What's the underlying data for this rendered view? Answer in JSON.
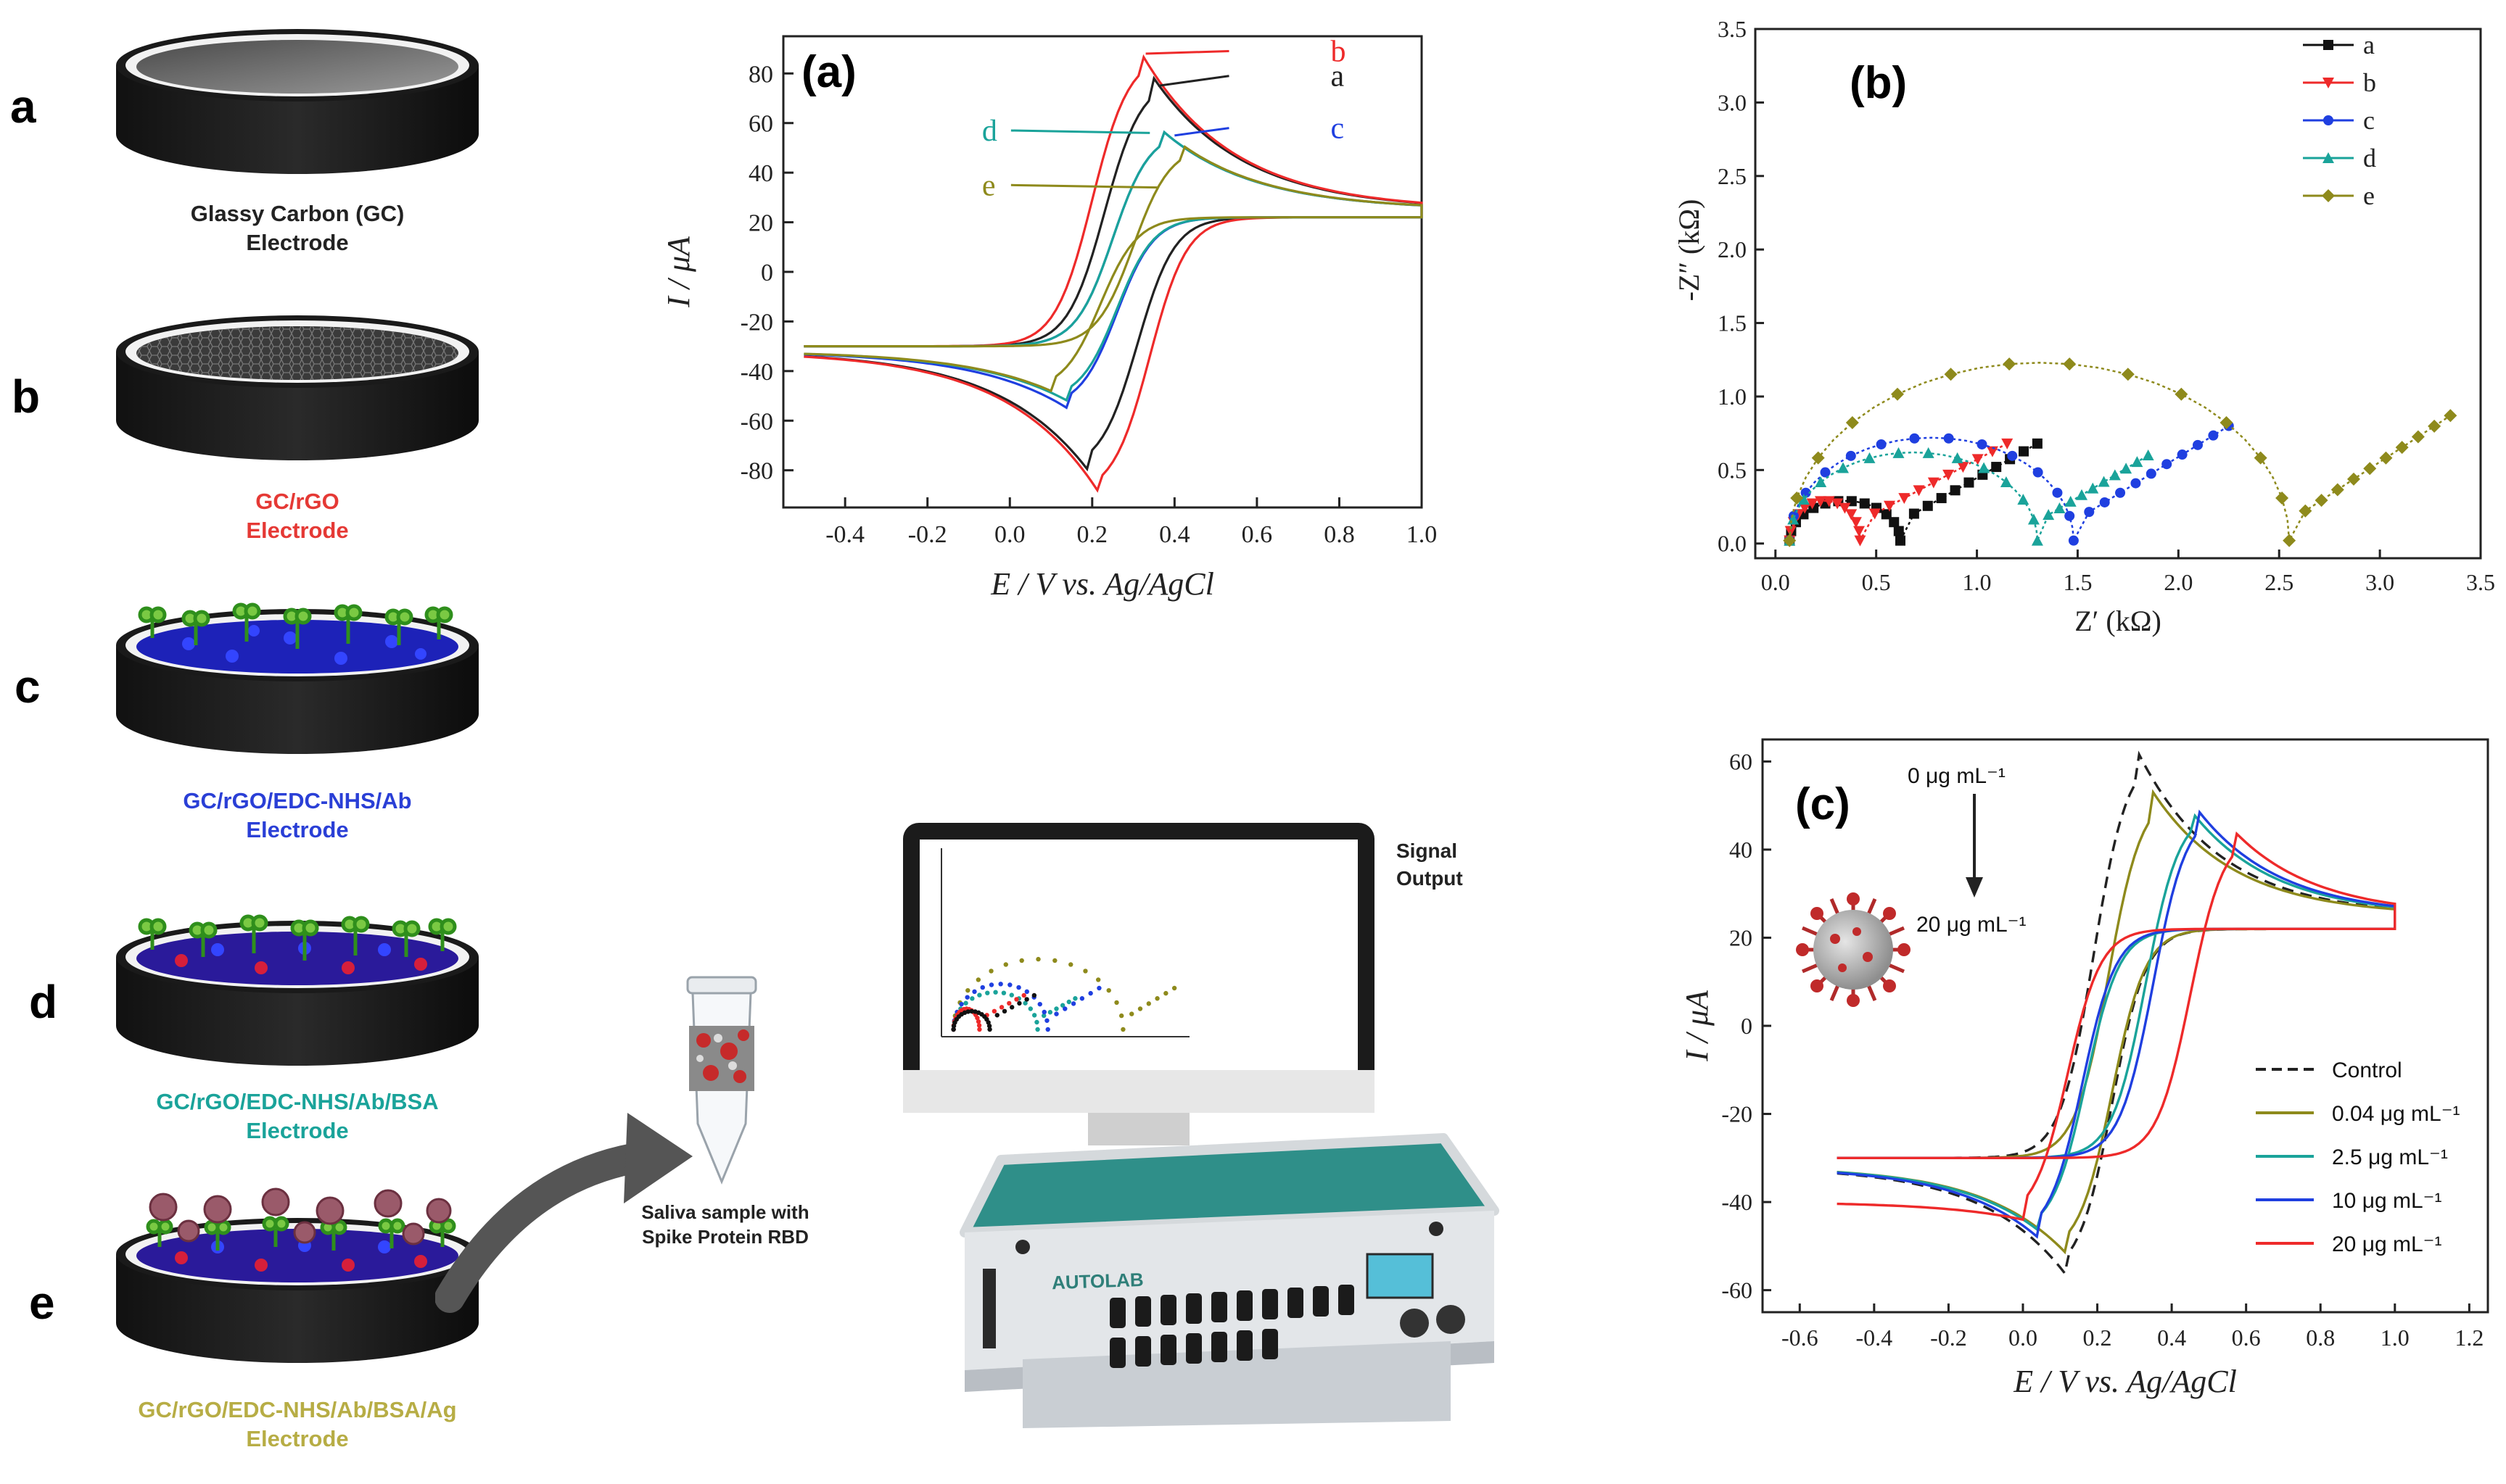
{
  "steps": [
    {
      "letter": "a",
      "line1": "Glassy Carbon (GC)",
      "line2": "Electrode",
      "color": "#222222"
    },
    {
      "letter": "b",
      "line1": "GC/rGO",
      "line2": "Electrode",
      "color": "#e53935"
    },
    {
      "letter": "c",
      "line1": "GC/rGO/EDC-NHS/Ab",
      "line2": "Electrode",
      "color": "#2a3fd6"
    },
    {
      "letter": "d",
      "line1": "GC/rGO/EDC-NHS/Ab/BSA",
      "line2": "Electrode",
      "color": "#1aa39a"
    },
    {
      "letter": "e",
      "line1": "GC/rGO/EDC-NHS/Ab/BSA/Ag",
      "line2": "Electrode",
      "color": "#b7ad45"
    }
  ],
  "sample": {
    "line1": "Saliva sample  with",
    "line2": "Spike Protein RBD"
  },
  "monitor": {
    "signal_line1": "Signal",
    "signal_line2": "Output"
  },
  "device": {
    "brand": "AUTOLAB"
  },
  "colors": {
    "a": "#222222",
    "b": "#ee2a2a",
    "c": "#1f3fe0",
    "d": "#1aa39a",
    "e": "#8e8a1c"
  },
  "chart_data": [
    {
      "id": "a",
      "type": "line",
      "panel_label": "(a)",
      "title": "",
      "xlabel": "E / V vs. Ag/AgCl",
      "ylabel": "I / μA",
      "xlim": [
        -0.55,
        1.0
      ],
      "ylim": [
        -95,
        95
      ],
      "xticks": [
        -0.4,
        -0.2,
        0.0,
        0.2,
        0.4,
        0.6,
        0.8,
        1.0
      ],
      "yticks": [
        -80,
        -60,
        -40,
        -20,
        0,
        20,
        40,
        60,
        80
      ],
      "series": [
        {
          "name": "a",
          "peak_anodic": [
            0.35,
            78
          ],
          "peak_cathodic": [
            0.19,
            -80
          ]
        },
        {
          "name": "b",
          "peak_anodic": [
            0.32,
            88
          ],
          "peak_cathodic": [
            0.22,
            -90
          ]
        },
        {
          "name": "c",
          "peak_anodic": [
            0.37,
            57
          ],
          "peak_cathodic": [
            0.14,
            -55
          ]
        },
        {
          "name": "d",
          "peak_anodic": [
            0.37,
            57
          ],
          "peak_cathodic": [
            0.14,
            -52
          ]
        },
        {
          "name": "e",
          "peak_anodic": [
            0.42,
            51
          ],
          "peak_cathodic": [
            0.1,
            -48
          ]
        }
      ],
      "annotations": [
        "b",
        "a",
        "d",
        "c",
        "e"
      ]
    },
    {
      "id": "b",
      "type": "scatter",
      "panel_label": "(b)",
      "xlabel": "Z′ (kΩ)",
      "ylabel": "-Z″ (kΩ)",
      "xlim": [
        -0.1,
        3.5
      ],
      "ylim": [
        -0.1,
        3.5
      ],
      "xticks": [
        0.0,
        0.5,
        1.0,
        1.5,
        2.0,
        2.5,
        3.0,
        3.5
      ],
      "yticks": [
        0.0,
        0.5,
        1.0,
        1.5,
        2.0,
        2.5,
        3.0,
        3.5
      ],
      "legend": [
        "a",
        "b",
        "c",
        "d",
        "e"
      ],
      "series": [
        {
          "name": "a",
          "marker": "square",
          "Rct_kOhm": 0.62,
          "semicircle_max": 0.27,
          "tail_end": [
            1.3,
            0.68
          ]
        },
        {
          "name": "b",
          "marker": "triangle-down",
          "Rct_kOhm": 0.42,
          "semicircle_max": 0.27,
          "tail_end": [
            1.15,
            0.68
          ]
        },
        {
          "name": "c",
          "marker": "circle",
          "Rct_kOhm": 1.48,
          "semicircle_max": 0.7,
          "tail_end": [
            2.25,
            0.8
          ]
        },
        {
          "name": "d",
          "marker": "triangle-up",
          "Rct_kOhm": 1.3,
          "semicircle_max": 0.6,
          "tail_end": [
            1.85,
            0.6
          ]
        },
        {
          "name": "e",
          "marker": "diamond",
          "Rct_kOhm": 2.55,
          "semicircle_max": 1.21,
          "tail_end": [
            3.35,
            0.87
          ]
        }
      ]
    },
    {
      "id": "c",
      "type": "line",
      "panel_label": "(c)",
      "xlabel": "E / V vs. Ag/AgCl",
      "ylabel": "I / μA",
      "xlim": [
        -0.7,
        1.25
      ],
      "ylim": [
        -65,
        65
      ],
      "xticks": [
        -0.6,
        -0.4,
        -0.2,
        0.0,
        0.2,
        0.4,
        0.6,
        0.8,
        1.0,
        1.2
      ],
      "yticks": [
        -60,
        -40,
        -20,
        0,
        20,
        40,
        60
      ],
      "arrow_top": "0 μg mL⁻¹",
      "arrow_bottom": "20 μg mL⁻¹",
      "legend": [
        "Control",
        "0.04 μg mL⁻¹",
        "2.5 μg mL⁻¹",
        "10 μg mL⁻¹",
        "20 μg mL⁻¹"
      ],
      "series": [
        {
          "name": "Control",
          "peak_anodic": [
            0.31,
            62
          ],
          "peak_cathodic": [
            0.12,
            -57
          ]
        },
        {
          "name": "0.04 μg mL⁻¹",
          "peak_anodic": [
            0.35,
            53
          ],
          "peak_cathodic": [
            0.12,
            -52
          ]
        },
        {
          "name": "2.5 μg mL⁻¹",
          "peak_anodic": [
            0.45,
            49
          ],
          "peak_cathodic": [
            0.05,
            -47
          ]
        },
        {
          "name": "10 μg mL⁻¹",
          "peak_anodic": [
            0.47,
            49
          ],
          "peak_cathodic": [
            0.04,
            -48
          ]
        },
        {
          "name": "20 μg mL⁻¹",
          "peak_anodic": [
            0.57,
            44
          ],
          "peak_cathodic": [
            0.0,
            -44
          ]
        }
      ]
    }
  ]
}
